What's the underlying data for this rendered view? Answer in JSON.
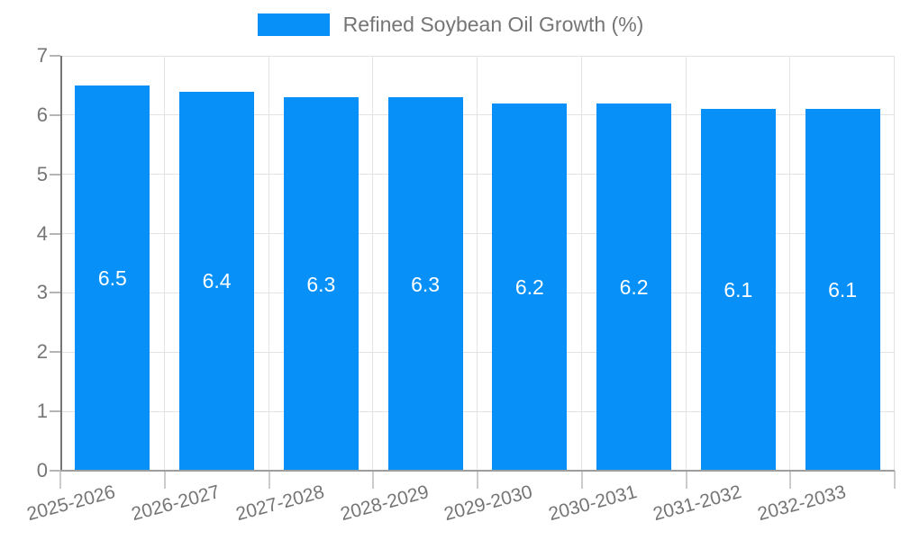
{
  "chart_data": {
    "type": "bar",
    "title": "",
    "legend": [
      "Refined Soybean Oil Growth (%)"
    ],
    "legend_position": "top",
    "categories": [
      "2025-2026",
      "2026-2027",
      "2027-2028",
      "2028-2029",
      "2029-2030",
      "2030-2031",
      "2031-2032",
      "2032-2033"
    ],
    "series": [
      {
        "name": "Refined Soybean Oil Growth (%)",
        "values": [
          6.5,
          6.4,
          6.3,
          6.3,
          6.2,
          6.2,
          6.1,
          6.1
        ]
      }
    ],
    "data_labels": [
      "6.5",
      "6.4",
      "6.3",
      "6.3",
      "6.2",
      "6.2",
      "6.1",
      "6.1"
    ],
    "xlabel": "",
    "ylabel": "",
    "ylim": [
      0,
      7
    ],
    "yticks": [
      "0",
      "1",
      "2",
      "3",
      "4",
      "5",
      "6",
      "7"
    ],
    "grid": true,
    "colors": {
      "bar": "#0690f8",
      "grid": "#e3e3e3",
      "y_axis_line": "#757575",
      "x_axis_line": "#9e9e9e",
      "tick": "#cccccc",
      "axis_label": "#757575",
      "data_label": "#ffffff"
    }
  }
}
